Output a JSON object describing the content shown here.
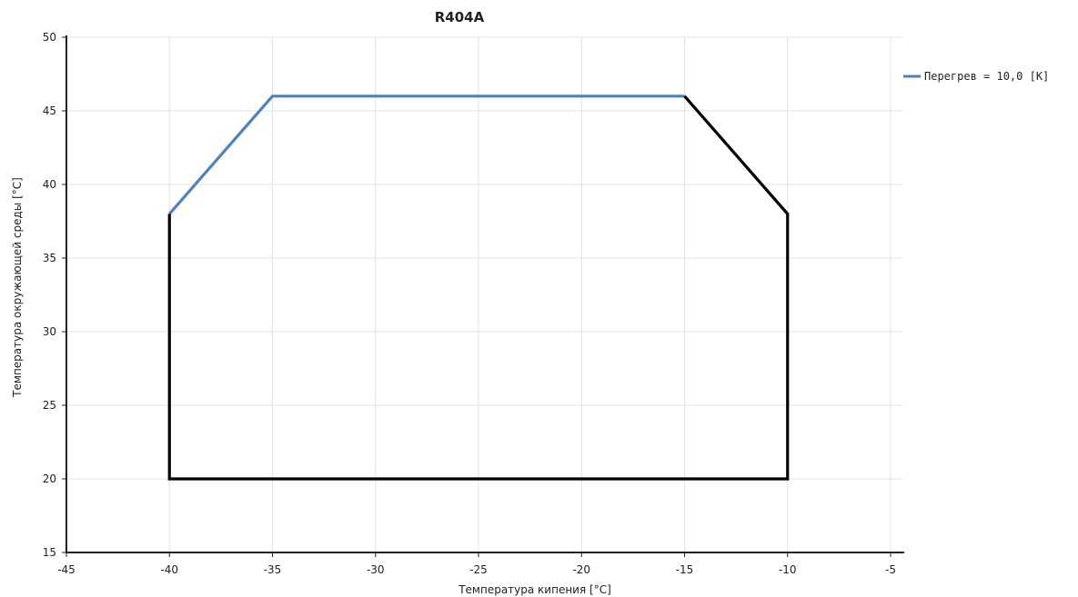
{
  "chart_data": {
    "type": "line",
    "title": "R404A",
    "xlabel": "Температура кипения [°C]",
    "ylabel": "Температура окружающей среды [°C]",
    "xlim": [
      -45,
      -5
    ],
    "ylim": [
      15,
      50
    ],
    "xticks": [
      -45,
      -40,
      -35,
      -30,
      -25,
      -20,
      -15,
      -10,
      -5
    ],
    "yticks": [
      15,
      20,
      25,
      30,
      35,
      40,
      45,
      50
    ],
    "grid": true,
    "legend_position": "top-right",
    "series": [
      {
        "name": "Перегрев = 10,0 [K]",
        "color": "#4f81bd",
        "x": [
          -40,
          -35,
          -15
        ],
        "y": [
          38,
          46,
          46
        ]
      },
      {
        "color": "#000000",
        "x": [
          -15,
          -10,
          -10,
          -40,
          -40
        ],
        "y": [
          46,
          38,
          20,
          20,
          38
        ]
      }
    ]
  }
}
